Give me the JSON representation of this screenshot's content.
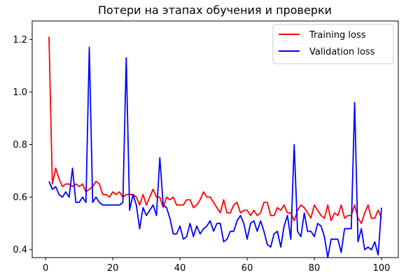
{
  "chart_data": {
    "type": "line",
    "title": "Потери на этапах обучения и проверки",
    "xlabel": "",
    "ylabel": "",
    "xlim": [
      -4,
      105
    ],
    "ylim": [
      0.37,
      1.27
    ],
    "xticks": [
      0,
      20,
      40,
      60,
      80,
      100
    ],
    "yticks": [
      0.4,
      0.6,
      0.8,
      1.0,
      1.2
    ],
    "xtick_labels": [
      "0",
      "20",
      "40",
      "60",
      "80",
      "100"
    ],
    "ytick_labels": [
      "0.4",
      "0.6",
      "0.8",
      "1.0",
      "1.2"
    ],
    "grid": false,
    "legend_position": "top-right",
    "x": [
      1,
      2,
      3,
      4,
      5,
      6,
      7,
      8,
      9,
      10,
      11,
      12,
      13,
      14,
      15,
      16,
      17,
      18,
      19,
      20,
      21,
      22,
      23,
      24,
      25,
      26,
      27,
      28,
      29,
      30,
      31,
      32,
      33,
      34,
      35,
      36,
      37,
      38,
      39,
      40,
      41,
      42,
      43,
      44,
      45,
      46,
      47,
      48,
      49,
      50,
      51,
      52,
      53,
      54,
      55,
      56,
      57,
      58,
      59,
      60,
      61,
      62,
      63,
      64,
      65,
      66,
      67,
      68,
      69,
      70,
      71,
      72,
      73,
      74,
      75,
      76,
      77,
      78,
      79,
      80,
      81,
      82,
      83,
      84,
      85,
      86,
      87,
      88,
      89,
      90,
      91,
      92,
      93,
      94,
      95,
      96,
      97,
      98,
      99,
      100
    ],
    "series": [
      {
        "name": "Training loss",
        "color": "#ff0000",
        "values": [
          1.21,
          0.65,
          0.71,
          0.67,
          0.64,
          0.65,
          0.65,
          0.64,
          0.65,
          0.64,
          0.65,
          0.62,
          0.63,
          0.64,
          0.66,
          0.65,
          0.61,
          0.61,
          0.6,
          0.62,
          0.61,
          0.62,
          0.6,
          0.61,
          0.61,
          0.61,
          0.6,
          0.57,
          0.61,
          0.57,
          0.6,
          0.63,
          0.6,
          0.6,
          0.56,
          0.6,
          0.59,
          0.6,
          0.57,
          0.57,
          0.57,
          0.59,
          0.59,
          0.56,
          0.57,
          0.59,
          0.62,
          0.6,
          0.6,
          0.58,
          0.56,
          0.54,
          0.59,
          0.54,
          0.54,
          0.57,
          0.58,
          0.54,
          0.55,
          0.55,
          0.53,
          0.55,
          0.53,
          0.54,
          0.58,
          0.58,
          0.53,
          0.53,
          0.56,
          0.55,
          0.57,
          0.54,
          0.54,
          0.51,
          0.55,
          0.57,
          0.56,
          0.54,
          0.52,
          0.57,
          0.55,
          0.53,
          0.52,
          0.57,
          0.51,
          0.54,
          0.53,
          0.57,
          0.52,
          0.53,
          0.53,
          0.57,
          0.52,
          0.5,
          0.54,
          0.57,
          0.52,
          0.52,
          0.55,
          0.52
        ]
      },
      {
        "name": "Validation loss",
        "color": "#0000ff",
        "values": [
          0.66,
          0.63,
          0.64,
          0.61,
          0.6,
          0.62,
          0.6,
          0.71,
          0.58,
          0.58,
          0.6,
          0.58,
          1.17,
          0.58,
          0.6,
          0.58,
          0.57,
          0.57,
          0.57,
          0.57,
          0.57,
          0.57,
          0.58,
          1.13,
          0.55,
          0.61,
          0.57,
          0.48,
          0.56,
          0.53,
          0.55,
          0.57,
          0.53,
          0.75,
          0.57,
          0.56,
          0.52,
          0.46,
          0.46,
          0.49,
          0.44,
          0.45,
          0.5,
          0.45,
          0.49,
          0.46,
          0.48,
          0.49,
          0.51,
          0.47,
          0.5,
          0.5,
          0.43,
          0.44,
          0.47,
          0.47,
          0.51,
          0.53,
          0.5,
          0.44,
          0.5,
          0.51,
          0.47,
          0.51,
          0.47,
          0.42,
          0.41,
          0.46,
          0.47,
          0.41,
          0.49,
          0.53,
          0.44,
          0.8,
          0.47,
          0.45,
          0.54,
          0.47,
          0.47,
          0.45,
          0.5,
          0.49,
          0.45,
          0.37,
          0.44,
          0.44,
          0.44,
          0.39,
          0.48,
          0.48,
          0.48,
          0.96,
          0.43,
          0.48,
          0.4,
          0.41,
          0.4,
          0.43,
          0.38,
          0.56
        ]
      }
    ]
  }
}
